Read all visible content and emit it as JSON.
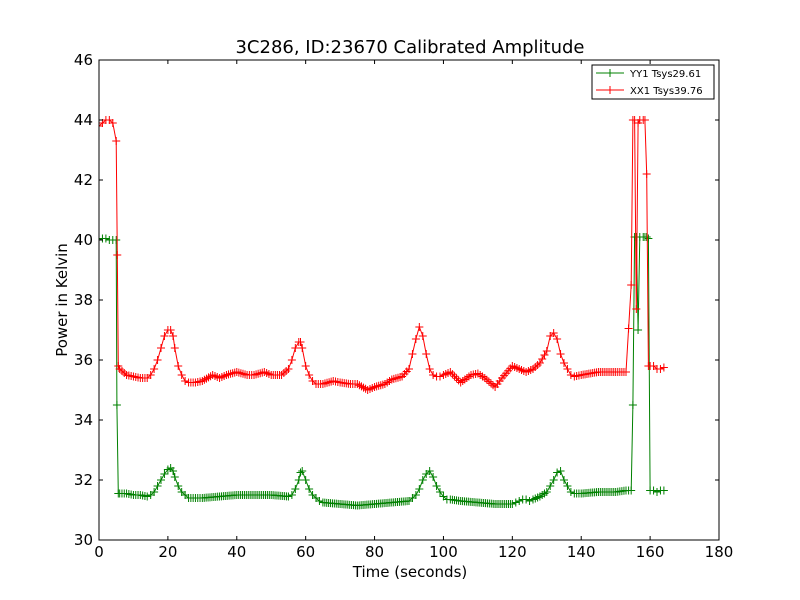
{
  "chart_data": {
    "type": "line",
    "title": "3C286, ID:23670 Calibrated Amplitude",
    "xlabel": "Time (seconds)",
    "ylabel": "Power in Kelvin",
    "xlim": [
      0,
      180
    ],
    "ylim": [
      30,
      46
    ],
    "xticks": [
      0,
      20,
      40,
      60,
      80,
      100,
      120,
      140,
      160,
      180
    ],
    "yticks": [
      30,
      32,
      34,
      36,
      38,
      40,
      42,
      44,
      46
    ],
    "legend_placement": "top-right",
    "grid": false,
    "marker": "plus",
    "series": [
      {
        "name": "YY1 Tsys29.61",
        "color": "#008000",
        "x": [
          0,
          1,
          2,
          3,
          4,
          5,
          5.2,
          5.6,
          6,
          8,
          10,
          12,
          14,
          15,
          16,
          17,
          18,
          19,
          20,
          20.8,
          21.5,
          22,
          23,
          24,
          25,
          26,
          28,
          30,
          35,
          40,
          45,
          50,
          55,
          56,
          57,
          58,
          58.5,
          59,
          60,
          61,
          62,
          63,
          64,
          65,
          70,
          75,
          80,
          85,
          90,
          91,
          92,
          93,
          94,
          95,
          96,
          97,
          98,
          99,
          100,
          101,
          102,
          105,
          110,
          115,
          120,
          121,
          122,
          123,
          124,
          125,
          126,
          128,
          130,
          131,
          132,
          133,
          134,
          135,
          136,
          137,
          138,
          140,
          145,
          150,
          153,
          154.5,
          155,
          155.5,
          156,
          156.5,
          157,
          158,
          158.5,
          159,
          159.5,
          160,
          161,
          162,
          163,
          164
        ],
        "values": [
          40.0,
          40.05,
          40.05,
          40.0,
          40.0,
          40.0,
          34.5,
          31.55,
          31.55,
          31.55,
          31.5,
          31.5,
          31.45,
          31.5,
          31.6,
          31.8,
          32.0,
          32.2,
          32.35,
          32.4,
          32.3,
          32.1,
          31.8,
          31.6,
          31.5,
          31.4,
          31.4,
          31.4,
          31.45,
          31.5,
          31.5,
          31.5,
          31.45,
          31.5,
          31.7,
          32.0,
          32.25,
          32.3,
          32.0,
          31.7,
          31.5,
          31.4,
          31.3,
          31.25,
          31.2,
          31.15,
          31.2,
          31.25,
          31.3,
          31.4,
          31.5,
          31.7,
          32.0,
          32.2,
          32.3,
          32.1,
          31.8,
          31.6,
          31.45,
          31.35,
          31.35,
          31.3,
          31.25,
          31.2,
          31.2,
          31.25,
          31.3,
          31.35,
          31.35,
          31.3,
          31.35,
          31.45,
          31.6,
          31.8,
          32.0,
          32.25,
          32.3,
          32.0,
          31.8,
          31.6,
          31.55,
          31.55,
          31.6,
          31.6,
          31.65,
          31.65,
          34.5,
          40.1,
          40.1,
          37.0,
          40.1,
          40.1,
          40.1,
          40.1,
          40.05,
          31.65,
          31.65,
          31.6,
          31.65,
          31.65
        ]
      },
      {
        "name": "XX1 Tsys39.76",
        "color": "#ff0000",
        "x": [
          0,
          1,
          2,
          3,
          4,
          5,
          5.3,
          5.6,
          6,
          8,
          10,
          12,
          14,
          15,
          16,
          17,
          18,
          19,
          20,
          20.8,
          21.5,
          22,
          23,
          24,
          25,
          26,
          28,
          30,
          33,
          35,
          37,
          40,
          43,
          45,
          48,
          50,
          53,
          55,
          56,
          57,
          58,
          58.5,
          59,
          60,
          61,
          62,
          63,
          65,
          68,
          70,
          73,
          75,
          78,
          80,
          83,
          85,
          88,
          90,
          91,
          92,
          93,
          94,
          95,
          96,
          97,
          98,
          99,
          100,
          102,
          105,
          108,
          110,
          112,
          115,
          117,
          120,
          122,
          124,
          126,
          128,
          130,
          131,
          132,
          133,
          134,
          135,
          136,
          137,
          138,
          140,
          145,
          150,
          153,
          154.5,
          155,
          155.5,
          156,
          156.5,
          157,
          158,
          158.5,
          159,
          159.5,
          160,
          161,
          162,
          163,
          164
        ],
        "values": [
          43.8,
          43.9,
          44.0,
          44.0,
          43.9,
          43.3,
          39.5,
          35.8,
          35.7,
          35.5,
          35.45,
          35.4,
          35.4,
          35.5,
          35.7,
          36.0,
          36.4,
          36.8,
          37.0,
          37.0,
          36.8,
          36.4,
          35.8,
          35.5,
          35.3,
          35.25,
          35.25,
          35.3,
          35.5,
          35.4,
          35.5,
          35.6,
          35.5,
          35.5,
          35.6,
          35.5,
          35.5,
          35.7,
          36.0,
          36.4,
          36.6,
          36.6,
          36.4,
          35.8,
          35.5,
          35.3,
          35.2,
          35.2,
          35.3,
          35.25,
          35.2,
          35.2,
          35.0,
          35.1,
          35.2,
          35.35,
          35.45,
          35.7,
          36.2,
          36.7,
          37.1,
          36.8,
          36.2,
          35.7,
          35.5,
          35.45,
          35.45,
          35.5,
          35.6,
          35.25,
          35.5,
          35.55,
          35.4,
          35.1,
          35.4,
          35.8,
          35.7,
          35.6,
          35.7,
          35.9,
          36.3,
          36.8,
          36.9,
          36.7,
          36.2,
          35.9,
          35.7,
          35.5,
          35.45,
          35.5,
          35.6,
          35.6,
          35.6,
          38.5,
          44.0,
          44.0,
          37.7,
          43.9,
          44.0,
          44.0,
          44.0,
          42.2,
          35.8,
          35.8,
          35.8,
          35.7,
          35.7,
          35.75
        ]
      }
    ]
  }
}
